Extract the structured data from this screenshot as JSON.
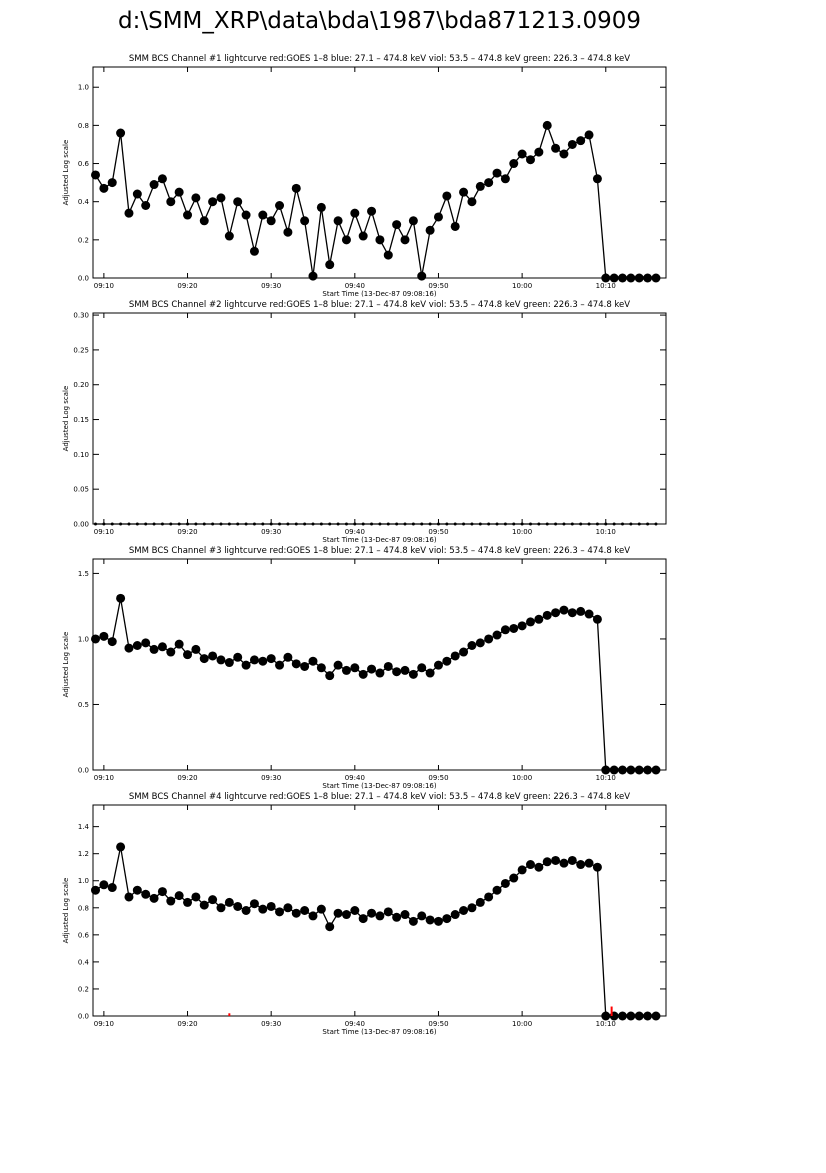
{
  "title": "d:\\SMM_XRP\\data\\bda\\1987\\bda871213.0909",
  "chart_data": [
    {
      "type": "line",
      "title": "SMM BCS Channel #1 lightcurve  red:GOES 1–8  blue: 27.1 – 474.8 keV  viol: 53.5 – 474.8 keV  green: 226.3 – 474.8 keV",
      "xlabel": "Start Time (13-Dec-87 09:08:16)",
      "ylabel": "Adjusted Log scale",
      "xlim": [
        8.7,
        77.2
      ],
      "xticks": [
        {
          "value": 10,
          "label": "09:10"
        },
        {
          "value": 20,
          "label": "09:20"
        },
        {
          "value": 30,
          "label": "09:30"
        },
        {
          "value": 40,
          "label": "09:40"
        },
        {
          "value": 50,
          "label": "09:50"
        },
        {
          "value": 60,
          "label": "10:00"
        },
        {
          "value": 70,
          "label": "10:10"
        }
      ],
      "ylim": [
        0,
        1.106
      ],
      "yticks": [
        {
          "value": 0,
          "label": "0.0"
        },
        0.2,
        0.4,
        0.6,
        0.8,
        {
          "value": 1,
          "label": "1.0"
        }
      ],
      "marker_size": 4.5,
      "series": [
        {
          "color": "#000000",
          "mode": "line",
          "x": [
            9,
            10,
            11,
            12,
            13,
            14,
            15,
            16,
            17,
            18,
            19,
            20,
            21,
            22,
            23,
            24,
            25,
            26,
            27,
            28,
            29,
            30,
            31,
            32,
            33,
            34,
            35,
            36,
            37,
            38,
            39,
            40,
            41,
            42,
            43,
            44,
            45,
            46,
            47,
            48,
            49,
            50,
            51,
            52,
            53,
            54,
            55,
            56,
            57,
            58,
            59,
            60,
            61,
            62,
            63,
            64,
            65,
            66,
            67,
            68,
            69,
            70,
            71,
            72,
            73,
            74,
            75,
            76
          ],
          "values": [
            0.54,
            0.47,
            0.5,
            0.76,
            0.34,
            0.44,
            0.38,
            0.49,
            0.52,
            0.4,
            0.45,
            0.33,
            0.42,
            0.3,
            0.4,
            0.42,
            0.22,
            0.4,
            0.33,
            0.14,
            0.33,
            0.3,
            0.38,
            0.24,
            0.47,
            0.3,
            0.01,
            0.37,
            0.07,
            0.3,
            0.2,
            0.34,
            0.22,
            0.35,
            0.2,
            0.12,
            0.28,
            0.2,
            0.3,
            0.01,
            0.25,
            0.32,
            0.43,
            0.27,
            0.45,
            0.4,
            0.48,
            0.5,
            0.55,
            0.52,
            0.6,
            0.65,
            0.62,
            0.66,
            0.8,
            0.68,
            0.65,
            0.7,
            0.72,
            0.75,
            0.52,
            0,
            0,
            0,
            0,
            0,
            0,
            0
          ]
        }
      ]
    },
    {
      "type": "line",
      "title": "SMM BCS Channel #2 lightcurve  red:GOES 1–8  blue: 27.1 – 474.8 keV  viol: 53.5 – 474.8 keV  green: 226.3 – 474.8 keV",
      "xlabel": "Start Time (13-Dec-87 09:08:16)",
      "ylabel": "Adjusted Log scale",
      "xlim": [
        8.7,
        77.2
      ],
      "xticks": [
        {
          "value": 10,
          "label": "09:10"
        },
        {
          "value": 20,
          "label": "09:20"
        },
        {
          "value": 30,
          "label": "09:30"
        },
        {
          "value": 40,
          "label": "09:40"
        },
        {
          "value": 50,
          "label": "09:50"
        },
        {
          "value": 60,
          "label": "10:00"
        },
        {
          "value": 70,
          "label": "10:10"
        }
      ],
      "ylim": [
        0,
        0.303
      ],
      "yticks": [
        {
          "value": 0,
          "label": "0.00"
        },
        0.05,
        {
          "value": 0.1,
          "label": "0.10"
        },
        0.15,
        {
          "value": 0.2,
          "label": "0.20"
        },
        0.25,
        {
          "value": 0.3,
          "label": "0.30"
        }
      ],
      "marker_size": 1.5,
      "series": [
        {
          "color": "#000000",
          "mode": "line",
          "x": [
            9,
            10,
            11,
            12,
            13,
            14,
            15,
            16,
            17,
            18,
            19,
            20,
            21,
            22,
            23,
            24,
            25,
            26,
            27,
            28,
            29,
            30,
            31,
            32,
            33,
            34,
            35,
            36,
            37,
            38,
            39,
            40,
            41,
            42,
            43,
            44,
            45,
            46,
            47,
            48,
            49,
            50,
            51,
            52,
            53,
            54,
            55,
            56,
            57,
            58,
            59,
            60,
            61,
            62,
            63,
            64,
            65,
            66,
            67,
            68,
            69,
            70,
            71,
            72,
            73,
            74,
            75,
            76
          ],
          "values": [
            0,
            0,
            0,
            0,
            0,
            0,
            0,
            0,
            0,
            0,
            0,
            0,
            0,
            0,
            0,
            0,
            0,
            0,
            0,
            0,
            0,
            0,
            0,
            0,
            0,
            0,
            0,
            0,
            0,
            0,
            0,
            0,
            0,
            0,
            0,
            0,
            0,
            0,
            0,
            0,
            0,
            0,
            0,
            0,
            0,
            0,
            0,
            0,
            0,
            0,
            0,
            0,
            0,
            0,
            0,
            0,
            0,
            0,
            0,
            0,
            0,
            0,
            0,
            0,
            0,
            0,
            0,
            0
          ]
        }
      ]
    },
    {
      "type": "line",
      "title": "SMM BCS Channel #3 lightcurve  red:GOES 1–8  blue: 27.1 – 474.8 keV  viol: 53.5 – 474.8 keV  green: 226.3 – 474.8 keV",
      "xlabel": "Start Time (13-Dec-87 09:08:16)",
      "ylabel": "Adjusted Log scale",
      "xlim": [
        8.7,
        77.2
      ],
      "xticks": [
        {
          "value": 10,
          "label": "09:10"
        },
        {
          "value": 20,
          "label": "09:20"
        },
        {
          "value": 30,
          "label": "09:30"
        },
        {
          "value": 40,
          "label": "09:40"
        },
        {
          "value": 50,
          "label": "09:50"
        },
        {
          "value": 60,
          "label": "10:00"
        },
        {
          "value": 70,
          "label": "10:10"
        }
      ],
      "ylim": [
        0,
        1.61
      ],
      "yticks": [
        {
          "value": 0,
          "label": "0.0"
        },
        0.5,
        {
          "value": 1,
          "label": "1.0"
        },
        1.5
      ],
      "marker_size": 4.5,
      "series": [
        {
          "color": "#000000",
          "mode": "line",
          "x": [
            9,
            10,
            11,
            12,
            13,
            14,
            15,
            16,
            17,
            18,
            19,
            20,
            21,
            22,
            23,
            24,
            25,
            26,
            27,
            28,
            29,
            30,
            31,
            32,
            33,
            34,
            35,
            36,
            37,
            38,
            39,
            40,
            41,
            42,
            43,
            44,
            45,
            46,
            47,
            48,
            49,
            50,
            51,
            52,
            53,
            54,
            55,
            56,
            57,
            58,
            59,
            60,
            61,
            62,
            63,
            64,
            65,
            66,
            67,
            68,
            69,
            70,
            71,
            72,
            73,
            74,
            75,
            76
          ],
          "values": [
            1.0,
            1.02,
            0.98,
            1.31,
            0.93,
            0.95,
            0.97,
            0.92,
            0.94,
            0.9,
            0.96,
            0.88,
            0.92,
            0.85,
            0.87,
            0.84,
            0.82,
            0.86,
            0.8,
            0.84,
            0.83,
            0.85,
            0.8,
            0.86,
            0.81,
            0.79,
            0.83,
            0.78,
            0.72,
            0.8,
            0.76,
            0.78,
            0.73,
            0.77,
            0.74,
            0.79,
            0.75,
            0.76,
            0.73,
            0.78,
            0.74,
            0.8,
            0.83,
            0.87,
            0.9,
            0.95,
            0.97,
            1.0,
            1.03,
            1.07,
            1.08,
            1.1,
            1.13,
            1.15,
            1.18,
            1.2,
            1.22,
            1.2,
            1.21,
            1.19,
            1.15,
            0,
            0,
            0,
            0,
            0,
            0,
            0
          ]
        }
      ]
    },
    {
      "type": "line",
      "title": "SMM BCS Channel #4 lightcurve  red:GOES 1–8  blue: 27.1 – 474.8 keV  viol: 53.5 – 474.8 keV  green: 226.3 – 474.8 keV",
      "xlabel": "Start Time (13-Dec-87 09:08:16)",
      "ylabel": "Adjusted Log scale",
      "xlim": [
        8.7,
        77.2
      ],
      "xticks": [
        {
          "value": 10,
          "label": "09:10"
        },
        {
          "value": 20,
          "label": "09:20"
        },
        {
          "value": 30,
          "label": "09:30"
        },
        {
          "value": 40,
          "label": "09:40"
        },
        {
          "value": 50,
          "label": "09:50"
        },
        {
          "value": 60,
          "label": "10:00"
        },
        {
          "value": 70,
          "label": "10:10"
        }
      ],
      "ylim": [
        0,
        1.56
      ],
      "yticks": [
        {
          "value": 0,
          "label": "0.0"
        },
        0.2,
        0.4,
        0.6,
        0.8,
        {
          "value": 1,
          "label": "1.0"
        },
        1.2,
        1.4
      ],
      "marker_size": 4.5,
      "series": [
        {
          "color": "#000000",
          "mode": "line",
          "x": [
            9,
            10,
            11,
            12,
            13,
            14,
            15,
            16,
            17,
            18,
            19,
            20,
            21,
            22,
            23,
            24,
            25,
            26,
            27,
            28,
            29,
            30,
            31,
            32,
            33,
            34,
            35,
            36,
            37,
            38,
            39,
            40,
            41,
            42,
            43,
            44,
            45,
            46,
            47,
            48,
            49,
            50,
            51,
            52,
            53,
            54,
            55,
            56,
            57,
            58,
            59,
            60,
            61,
            62,
            63,
            64,
            65,
            66,
            67,
            68,
            69,
            70,
            71,
            72,
            73,
            74,
            75,
            76
          ],
          "values": [
            0.93,
            0.97,
            0.95,
            1.25,
            0.88,
            0.93,
            0.9,
            0.87,
            0.92,
            0.85,
            0.89,
            0.84,
            0.88,
            0.82,
            0.86,
            0.8,
            0.84,
            0.81,
            0.78,
            0.83,
            0.79,
            0.81,
            0.77,
            0.8,
            0.76,
            0.78,
            0.74,
            0.79,
            0.66,
            0.76,
            0.75,
            0.78,
            0.72,
            0.76,
            0.74,
            0.77,
            0.73,
            0.75,
            0.7,
            0.74,
            0.71,
            0.7,
            0.72,
            0.75,
            0.78,
            0.8,
            0.84,
            0.88,
            0.93,
            0.98,
            1.02,
            1.08,
            1.12,
            1.1,
            1.14,
            1.15,
            1.13,
            1.15,
            1.12,
            1.13,
            1.1,
            0,
            0,
            0,
            0,
            0,
            0,
            0
          ]
        },
        {
          "color": "#ff0000",
          "mode": "impulse",
          "x": [
            25,
            70.7
          ],
          "values": [
            0.02,
            0.07
          ]
        }
      ]
    }
  ]
}
